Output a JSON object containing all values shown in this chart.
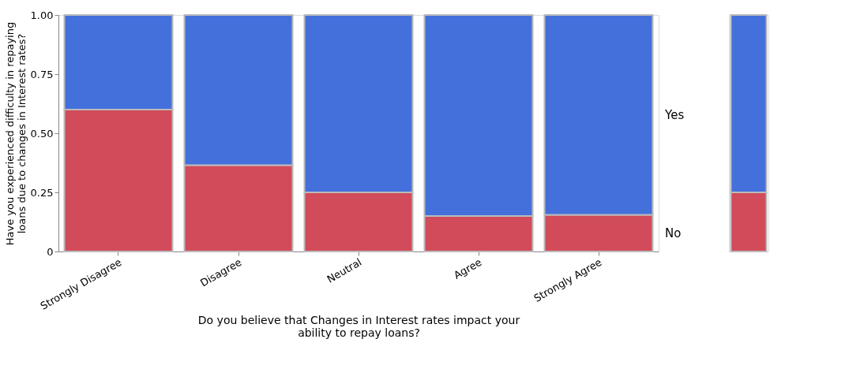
{
  "chart_data": [
    {
      "type": "bar",
      "stacked": true,
      "xlabel": "Do you believe that Changes in Interest rates impact your ability to repay loans?",
      "ylabel": "Have you experienced difficulty in repaying loans due to changes in Interest rates?",
      "categories": [
        "Strongly Disagree",
        "Disagree",
        "Neutral",
        "Agree",
        "Strongly Agree"
      ],
      "series": [
        {
          "name": "No",
          "color": "#d24b5a",
          "values": [
            0.6,
            0.365,
            0.25,
            0.15,
            0.155
          ]
        },
        {
          "name": "Yes",
          "color": "#4470dc",
          "values": [
            0.4,
            0.635,
            0.75,
            0.85,
            0.845
          ]
        }
      ],
      "ylim": [
        0,
        1
      ],
      "yticks": [
        0,
        {
          "value": 0.25,
          "label": "0.25"
        },
        {
          "value": 0.5,
          "label": "0.50"
        },
        {
          "value": 0.75,
          "label": "0.75"
        },
        {
          "value": 1,
          "label": "1.00"
        }
      ],
      "grid": false,
      "legend": false
    },
    {
      "type": "bar",
      "stacked": true,
      "categories": [
        null
      ],
      "series": [
        {
          "color": "#d24b5a",
          "values": [
            0.25
          ]
        },
        {
          "color": "#4470dc",
          "values": [
            0.75
          ]
        }
      ],
      "ylim": [
        0,
        1
      ],
      "tick_labels": false
    }
  ]
}
